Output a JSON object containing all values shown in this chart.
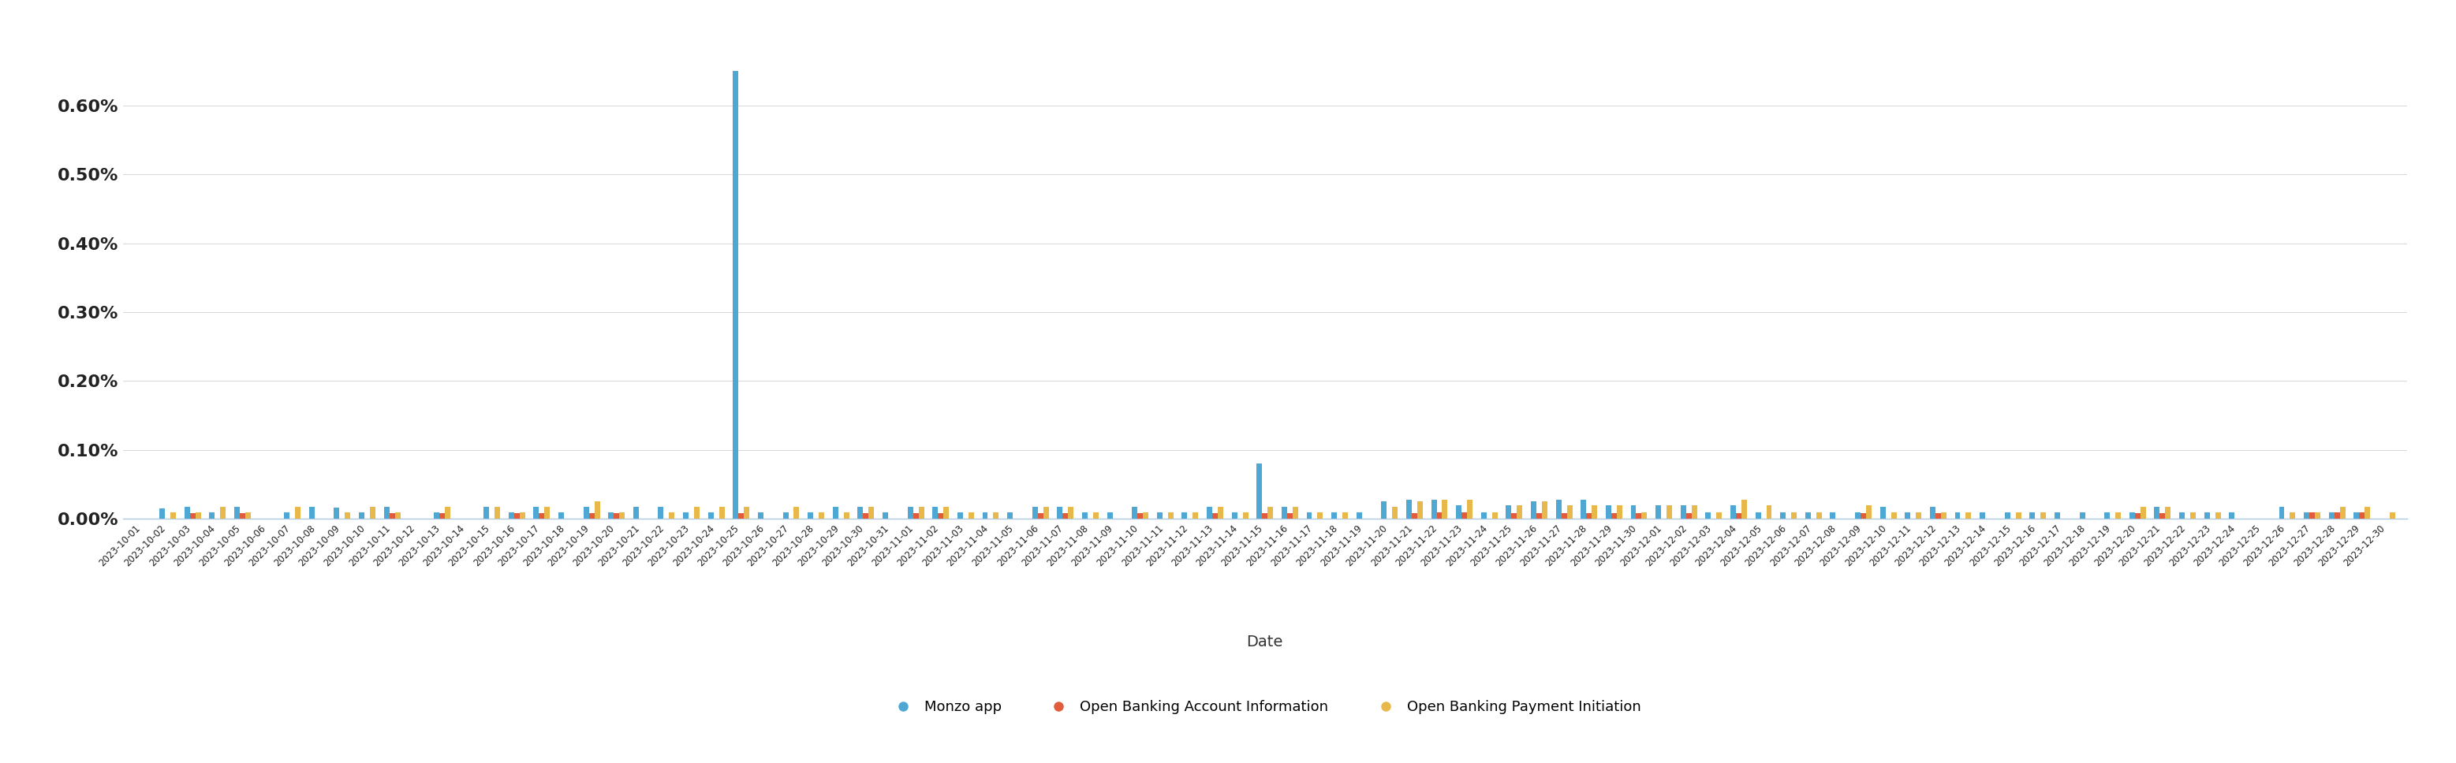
{
  "dates": [
    "2023-10-01",
    "2023-10-02",
    "2023-10-03",
    "2023-10-04",
    "2023-10-05",
    "2023-10-06",
    "2023-10-07",
    "2023-10-08",
    "2023-10-09",
    "2023-10-10",
    "2023-10-11",
    "2023-10-12",
    "2023-10-13",
    "2023-10-14",
    "2023-10-15",
    "2023-10-16",
    "2023-10-17",
    "2023-10-18",
    "2023-10-19",
    "2023-10-20",
    "2023-10-21",
    "2023-10-22",
    "2023-10-23",
    "2023-10-24",
    "2023-10-25",
    "2023-10-26",
    "2023-10-27",
    "2023-10-28",
    "2023-10-29",
    "2023-10-30",
    "2023-10-31",
    "2023-11-01",
    "2023-11-02",
    "2023-11-03",
    "2023-11-04",
    "2023-11-05",
    "2023-11-06",
    "2023-11-07",
    "2023-11-08",
    "2023-11-09",
    "2023-11-10",
    "2023-11-11",
    "2023-11-12",
    "2023-11-13",
    "2023-11-14",
    "2023-11-15",
    "2023-11-16",
    "2023-11-17",
    "2023-11-18",
    "2023-11-19",
    "2023-11-20",
    "2023-11-21",
    "2023-11-22",
    "2023-11-23",
    "2023-11-24",
    "2023-11-25",
    "2023-11-26",
    "2023-11-27",
    "2023-11-28",
    "2023-11-29",
    "2023-11-30",
    "2023-12-01",
    "2023-12-02",
    "2023-12-03",
    "2023-12-04",
    "2023-12-05",
    "2023-12-06",
    "2023-12-07",
    "2023-12-08",
    "2023-12-09",
    "2023-12-10",
    "2023-12-11",
    "2023-12-12",
    "2023-12-13",
    "2023-12-14",
    "2023-12-15",
    "2023-12-16",
    "2023-12-17",
    "2023-12-18",
    "2023-12-19",
    "2023-12-20",
    "2023-12-21",
    "2023-12-22",
    "2023-12-23",
    "2023-12-24",
    "2023-12-25",
    "2023-12-26",
    "2023-12-27",
    "2023-12-28",
    "2023-12-29",
    "2023-12-30"
  ],
  "monzo_app": [
    0.0,
    0.00015,
    0.00018,
    0.0001,
    0.00017,
    0.0,
    0.0001,
    0.00018,
    0.00016,
    0.0001,
    0.00018,
    0.0,
    0.0001,
    0.0,
    0.00018,
    0.0001,
    0.00018,
    0.0001,
    0.00018,
    0.0001,
    0.00018,
    0.00018,
    0.0001,
    0.0001,
    0.0065,
    0.0001,
    0.0001,
    0.0001,
    0.00018,
    0.00018,
    0.0001,
    0.00018,
    0.00018,
    0.0001,
    0.0001,
    0.0001,
    0.00018,
    0.00018,
    0.0001,
    0.0001,
    0.00018,
    0.0001,
    0.0001,
    0.00018,
    0.0001,
    0.0008,
    0.00018,
    0.0001,
    0.0001,
    0.0001,
    0.00025,
    0.00028,
    0.00028,
    0.0002,
    0.0001,
    0.0002,
    0.00025,
    0.00028,
    0.00028,
    0.0002,
    0.0002,
    0.0002,
    0.0002,
    0.0001,
    0.0002,
    0.0001,
    0.0001,
    0.0001,
    0.0001,
    0.0001,
    0.00018,
    0.0001,
    0.00018,
    0.0001,
    0.0001,
    0.0001,
    0.0001,
    0.0001,
    0.0001,
    0.0001,
    0.0001,
    0.00018,
    0.0001,
    0.0001,
    0.0001,
    0.0,
    0.00018,
    0.0001,
    0.0001,
    0.0001,
    0.0
  ],
  "ob_account": [
    0.0,
    0.0,
    8e-05,
    0.0,
    8e-05,
    0.0,
    0.0,
    0.0,
    0.0,
    0.0,
    8e-05,
    0.0,
    8e-05,
    0.0,
    0.0,
    8e-05,
    8e-05,
    0.0,
    8e-05,
    8e-05,
    0.0,
    0.0,
    0.0,
    0.0,
    8e-05,
    0.0,
    0.0,
    0.0,
    0.0,
    8e-05,
    0.0,
    8e-05,
    8e-05,
    0.0,
    0.0,
    0.0,
    8e-05,
    8e-05,
    0.0,
    0.0,
    8e-05,
    0.0,
    0.0,
    8e-05,
    0.0,
    8e-05,
    8e-05,
    0.0,
    0.0,
    0.0,
    0.0,
    8e-05,
    0.0001,
    0.0001,
    0.0,
    8e-05,
    8e-05,
    8e-05,
    8e-05,
    8e-05,
    8e-05,
    0.0,
    8e-05,
    0.0,
    8e-05,
    0.0,
    0.0,
    0.0,
    0.0,
    8e-05,
    0.0,
    0.0,
    8e-05,
    0.0,
    0.0,
    0.0,
    0.0,
    0.0,
    0.0,
    0.0,
    8e-05,
    8e-05,
    0.0,
    0.0,
    0.0,
    0.0,
    0.0,
    0.0001,
    0.0001,
    0.0001,
    0.0
  ],
  "ob_payment": [
    0.0,
    0.0001,
    0.0001,
    0.00018,
    0.0001,
    0.0,
    0.00018,
    0.0,
    0.0001,
    0.00018,
    0.0001,
    0.0,
    0.00018,
    0.0,
    0.00018,
    0.0001,
    0.00018,
    0.0,
    0.00025,
    0.0001,
    0.0,
    0.0001,
    0.00018,
    0.00018,
    0.00018,
    0.0,
    0.00018,
    0.0001,
    0.0001,
    0.00018,
    0.0,
    0.00018,
    0.00018,
    0.0001,
    0.0001,
    0.0,
    0.00018,
    0.00018,
    0.0001,
    0.0,
    0.0001,
    0.0001,
    0.0001,
    0.00018,
    0.0001,
    0.00018,
    0.00018,
    0.0001,
    0.0001,
    0.0,
    0.00018,
    0.00025,
    0.00028,
    0.00028,
    0.0001,
    0.0002,
    0.00025,
    0.0002,
    0.0002,
    0.0002,
    0.0001,
    0.0002,
    0.0002,
    0.0001,
    0.00028,
    0.0002,
    0.0001,
    0.0001,
    0.0,
    0.0002,
    0.0001,
    0.0001,
    0.0001,
    0.0001,
    0.0,
    0.0001,
    0.0001,
    0.0,
    0.0,
    0.0001,
    0.00018,
    0.00018,
    0.0001,
    0.0001,
    0.0,
    0.0,
    0.0001,
    0.0001,
    0.00018,
    0.00018,
    0.0001
  ],
  "color_monzo": "#4fa8d4",
  "color_ob_account": "#e05c3a",
  "color_ob_payment": "#e8b84b",
  "xlabel": "Date",
  "legend_labels": [
    "Monzo app",
    "Open Banking Account Information",
    "Open Banking Payment Initiation"
  ],
  "ylim": [
    0.0,
    0.0072
  ],
  "yticks": [
    0.0,
    0.001,
    0.002,
    0.003,
    0.004,
    0.005,
    0.006
  ],
  "ytick_labels": [
    "0.00%",
    "0.10%",
    "0.20%",
    "0.30%",
    "0.40%",
    "0.50%",
    "0.60%"
  ],
  "background_color": "#ffffff",
  "grid_color": "#d8d8d8"
}
